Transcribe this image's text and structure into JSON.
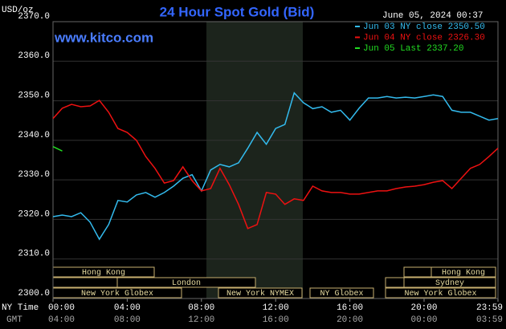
{
  "chart_data": {
    "type": "line",
    "title": "24 Hour Spot Gold (Bid)",
    "ylabel": "USD/oz",
    "timestamp": "June 05, 2024 00:37",
    "watermark": "www.kitco.com",
    "xlabel": "NY Time",
    "x2label": "GMT",
    "xlim": [
      0,
      23.983
    ],
    "ylim": [
      2300,
      2370
    ],
    "xticks": [
      {
        "value": 0,
        "label": "00:00"
      },
      {
        "value": 4,
        "label": "04:00"
      },
      {
        "value": 8,
        "label": "08:00"
      },
      {
        "value": 12,
        "label": "12:00"
      },
      {
        "value": 16,
        "label": "16:00"
      },
      {
        "value": 20,
        "label": "20:00"
      },
      {
        "value": 23.983,
        "label": "23:59"
      }
    ],
    "gmt_labels": [
      "04:00",
      "08:00",
      "12:00",
      "16:00",
      "20:00",
      "00:00",
      "03:59"
    ],
    "yticks": [
      {
        "value": 2300,
        "label": "2300.0"
      },
      {
        "value": 2310,
        "label": "2310.0"
      },
      {
        "value": 2320,
        "label": "2320.0"
      },
      {
        "value": 2330,
        "label": "2330.0"
      },
      {
        "value": 2340,
        "label": "2340.0"
      },
      {
        "value": 2350,
        "label": "2350.0"
      },
      {
        "value": 2360,
        "label": "2360.0"
      },
      {
        "value": 2370,
        "label": "2370.0"
      }
    ],
    "grid": true,
    "sessions": [
      "Hong Kong",
      "Hong Kong",
      "London",
      "Sydney",
      "New York Globex",
      "New York NYMEX",
      "NY Globex",
      "New York Globex"
    ],
    "x": [
      0,
      0.5,
      1,
      1.5,
      2,
      2.5,
      3,
      3.5,
      4,
      4.5,
      5,
      5.5,
      6,
      6.5,
      7,
      7.5,
      8,
      8.5,
      9,
      9.5,
      10,
      10.5,
      11,
      11.5,
      12,
      12.5,
      13,
      13.5,
      14,
      14.5,
      15,
      15.5,
      16,
      16.5,
      17,
      17.5,
      18,
      18.5,
      19,
      19.5,
      20,
      20.5,
      21,
      21.5,
      22,
      22.5,
      23,
      23.5,
      23.983
    ],
    "series": [
      {
        "name": "Jun 03 NY close 2350.50",
        "color": "#33bbee",
        "values": [
          2320.7,
          2321.1,
          2320.7,
          2321.7,
          2319.3,
          2315.0,
          2318.7,
          2324.8,
          2324.4,
          2326.2,
          2326.8,
          2325.6,
          2326.8,
          2328.4,
          2330.4,
          2331.3,
          2327.2,
          2332.5,
          2333.9,
          2333.3,
          2334.3,
          2338.0,
          2342.0,
          2339.0,
          2343.0,
          2344.0,
          2352.0,
          2349.5,
          2348.0,
          2348.5,
          2347.1,
          2347.6,
          2345.1,
          2348.1,
          2350.7,
          2350.7,
          2351.1,
          2350.7,
          2350.9,
          2350.7,
          2351.1,
          2351.5,
          2351.1,
          2347.6,
          2347.1,
          2347.1,
          2346.1,
          2345.1,
          2345.5
        ]
      },
      {
        "name": "Jun 04 NY close 2326.30",
        "color": "#ee1111",
        "values": [
          2345.5,
          2348.1,
          2349.1,
          2348.5,
          2348.7,
          2350.1,
          2347.1,
          2343.0,
          2342.0,
          2340.0,
          2335.9,
          2332.9,
          2329.2,
          2329.8,
          2333.3,
          2329.8,
          2327.2,
          2327.8,
          2332.9,
          2328.8,
          2323.8,
          2317.7,
          2318.7,
          2326.8,
          2326.4,
          2323.8,
          2325.2,
          2324.8,
          2328.4,
          2327.2,
          2326.8,
          2326.8,
          2326.4,
          2326.4,
          2326.8,
          2327.2,
          2327.2,
          2327.8,
          2328.2,
          2328.4,
          2328.8,
          2329.4,
          2329.8,
          2327.8,
          2330.4,
          2332.9,
          2333.9,
          2335.9,
          2338.0
        ]
      },
      {
        "name": "Jun 05 Last 2337.20",
        "color": "#22dd22",
        "values": [
          2338.4,
          2337.3,
          null,
          null,
          null,
          null,
          null,
          null,
          null,
          null,
          null,
          null,
          null,
          null,
          null,
          null,
          null,
          null,
          null,
          null,
          null,
          null,
          null,
          null,
          null,
          null,
          null,
          null,
          null,
          null,
          null,
          null,
          null,
          null,
          null,
          null,
          null,
          null,
          null,
          null,
          null,
          null,
          null,
          null,
          null,
          null,
          null,
          null,
          null
        ]
      }
    ]
  }
}
